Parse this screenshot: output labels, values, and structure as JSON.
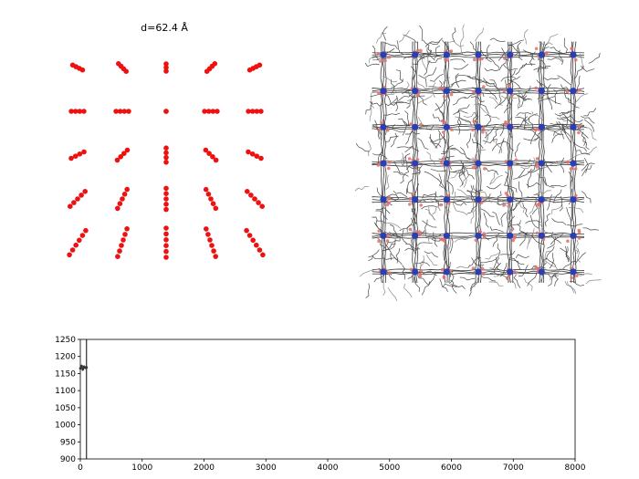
{
  "title": "d=62.4 Å",
  "chart_data": [
    {
      "type": "scatter",
      "grid": false,
      "marker_color": "#ee1111",
      "groups": [
        {
          "row": 1,
          "col": 1,
          "points": 4
        },
        {
          "row": 1,
          "col": 2,
          "points": 4
        },
        {
          "row": 1,
          "col": 3,
          "points": 3
        },
        {
          "row": 1,
          "col": 4,
          "points": 4
        },
        {
          "row": 1,
          "col": 5,
          "points": 4
        },
        {
          "row": 2,
          "col": 1,
          "points": 4
        },
        {
          "row": 2,
          "col": 2,
          "points": 4
        },
        {
          "row": 2,
          "col": 3,
          "points": 2
        },
        {
          "row": 2,
          "col": 4,
          "points": 4
        },
        {
          "row": 2,
          "col": 5,
          "points": 4
        },
        {
          "row": 3,
          "col": 1,
          "points": 4
        },
        {
          "row": 3,
          "col": 2,
          "points": 4
        },
        {
          "row": 3,
          "col": 3,
          "points": 4
        },
        {
          "row": 3,
          "col": 4,
          "points": 4
        },
        {
          "row": 3,
          "col": 5,
          "points": 4
        },
        {
          "row": 4,
          "col": 1,
          "points": 5
        },
        {
          "row": 4,
          "col": 2,
          "points": 5
        },
        {
          "row": 4,
          "col": 3,
          "points": 5
        },
        {
          "row": 4,
          "col": 4,
          "points": 5
        },
        {
          "row": 4,
          "col": 5,
          "points": 5
        },
        {
          "row": 5,
          "col": 1,
          "points": 6
        },
        {
          "row": 5,
          "col": 2,
          "points": 6
        },
        {
          "row": 5,
          "col": 3,
          "points": 6
        },
        {
          "row": 5,
          "col": 4,
          "points": 6
        },
        {
          "row": 5,
          "col": 5,
          "points": 6
        }
      ]
    },
    {
      "type": "other",
      "description_free": true,
      "grid_rows": 7,
      "grid_cols": 7,
      "colors": {
        "bond": "#3a3a3a",
        "metal": "#2b3fb5",
        "oxygen": "#e07070"
      }
    },
    {
      "type": "line",
      "x": [
        0,
        20,
        40,
        60,
        80,
        100
      ],
      "y": [
        1165,
        1172,
        1162,
        1170,
        1167,
        1168
      ],
      "xlim": [
        0,
        8000
      ],
      "ylim": [
        900,
        1250
      ],
      "xticks": [
        "0",
        "1000",
        "2000",
        "3000",
        "4000",
        "5000",
        "6000",
        "7000",
        "8000"
      ],
      "yticks": [
        "900",
        "950",
        "1000",
        "1050",
        "1100",
        "1150",
        "1200",
        "1250"
      ],
      "line_color": "#333333",
      "vline_x": 100,
      "xlabel": "",
      "ylabel": ""
    }
  ]
}
